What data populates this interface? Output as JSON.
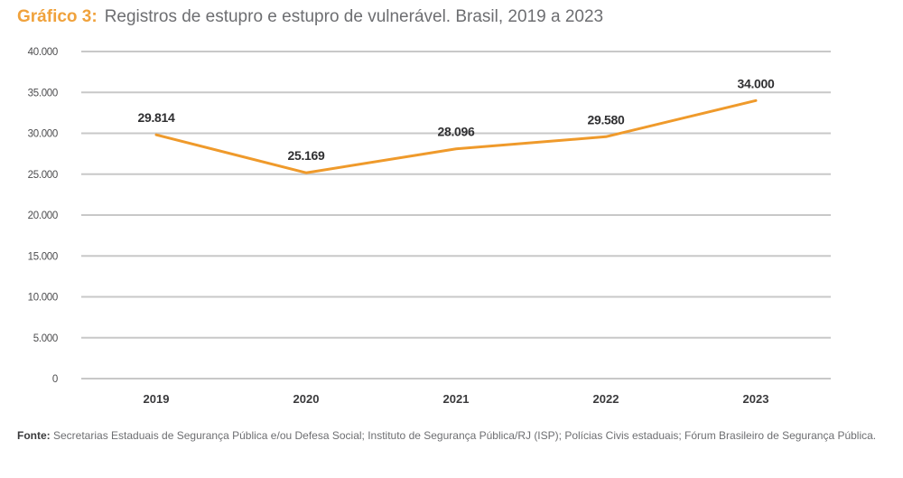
{
  "title": {
    "lead": "Gráfico 3:",
    "text": "Registros de estupro e estupro de vulnerável. Brasil, 2019 a 2023"
  },
  "colors": {
    "accent": "#f0a23c",
    "line": "#ef9a2b",
    "grid": "#c8c8c8",
    "text": "#6d6e71"
  },
  "source": {
    "label": "Fonte:",
    "text": "Secretarias Estaduais de Segurança Pública e/ou Defesa Social; Instituto de Segurança Pública/RJ (ISP); Polícias Civis estaduais; Fórum Brasileiro de Segurança Pública."
  },
  "chart_data": {
    "type": "line",
    "title": "Gráfico 3: Registros de estupro e estupro de vulnerável. Brasil, 2019 a 2023",
    "xlabel": "",
    "ylabel": "",
    "categories": [
      "2019",
      "2020",
      "2021",
      "2022",
      "2023"
    ],
    "series": [
      {
        "name": "Registros de estupro e estupro de vulnerável",
        "values": [
          29814,
          25169,
          28096,
          29580,
          34000
        ],
        "data_labels": [
          "29.814",
          "25.169",
          "28.096",
          "29.580",
          "34.000"
        ]
      }
    ],
    "ylim": [
      0,
      40000
    ],
    "yticks": [
      0,
      5000,
      10000,
      15000,
      20000,
      25000,
      30000,
      35000,
      40000
    ],
    "ytick_labels": [
      "0",
      "5.000",
      "10.000",
      "15.000",
      "20.000",
      "25.000",
      "30.000",
      "35.000",
      "40.000"
    ],
    "grid": true,
    "legend": "none"
  }
}
